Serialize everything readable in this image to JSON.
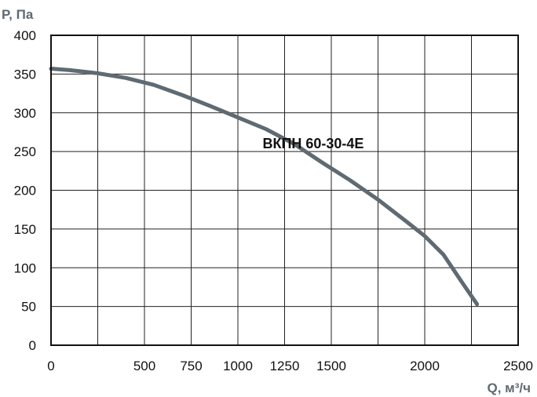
{
  "chart_data": {
    "type": "line",
    "title": "",
    "ylabel": "P, Па",
    "xlabel": "Q, м³/ч",
    "xlim": [
      0,
      2500
    ],
    "ylim": [
      0,
      400
    ],
    "x_ticks": [
      0,
      250,
      500,
      750,
      1000,
      1250,
      1500,
      1750,
      2000,
      2250,
      2500
    ],
    "x_tick_labels": [
      "0",
      "500",
      "750",
      "1000",
      "1250",
      "1500",
      "2000",
      "2500"
    ],
    "x_tick_label_values": [
      0,
      500,
      750,
      1000,
      1250,
      1500,
      2000,
      2500
    ],
    "y_ticks": [
      0,
      50,
      100,
      150,
      200,
      250,
      300,
      350,
      400
    ],
    "y_tick_labels": [
      "0",
      "50",
      "100",
      "150",
      "200",
      "250",
      "300",
      "350",
      "400"
    ],
    "grid": true,
    "series": [
      {
        "name": "ВКПН 60-30-4Е",
        "color": "#5f6a72",
        "x": [
          0,
          100,
          250,
          400,
          550,
          700,
          850,
          1000,
          1150,
          1300,
          1450,
          1600,
          1750,
          1900,
          2000,
          2100,
          2200,
          2280
        ],
        "y": [
          357,
          355,
          351,
          345,
          336,
          323,
          309,
          294,
          279,
          260,
          236,
          213,
          188,
          160,
          141,
          117,
          81,
          53
        ]
      }
    ],
    "annotations": [
      {
        "text": "ВКПН 60-30-4Е",
        "x": 1420,
        "y": 258
      }
    ]
  }
}
